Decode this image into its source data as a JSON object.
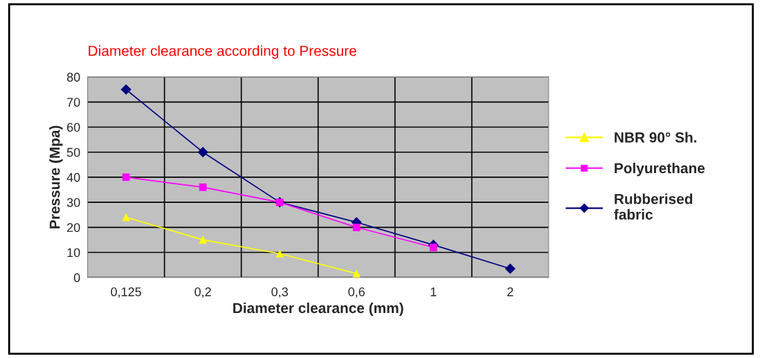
{
  "chart_data": {
    "type": "line",
    "title": "Diameter clearance according to Pressure",
    "xlabel": "Diameter clearance (mm)",
    "ylabel": "Pressure (Mpa)",
    "categories": [
      "0,125",
      "0,2",
      "0,3",
      "0,6",
      "1",
      "2"
    ],
    "series": [
      {
        "name": "NBR 90° Sh.",
        "color": "#ffff00",
        "marker": "triangle",
        "values": [
          24,
          15,
          9.5,
          1.5,
          null,
          null
        ]
      },
      {
        "name": "Polyurethane",
        "color": "#ff00ff",
        "marker": "square",
        "values": [
          40,
          36,
          30,
          20,
          12,
          null
        ]
      },
      {
        "name": "Rubberised fabric",
        "color": "#000080",
        "marker": "diamond",
        "values": [
          75,
          50,
          30,
          22,
          13,
          3.5
        ]
      }
    ],
    "ylim": [
      0,
      80
    ],
    "yticks": [
      0,
      10,
      20,
      30,
      40,
      50,
      60,
      70,
      80
    ],
    "grid": true,
    "legend": "right",
    "line_style": "solid"
  }
}
